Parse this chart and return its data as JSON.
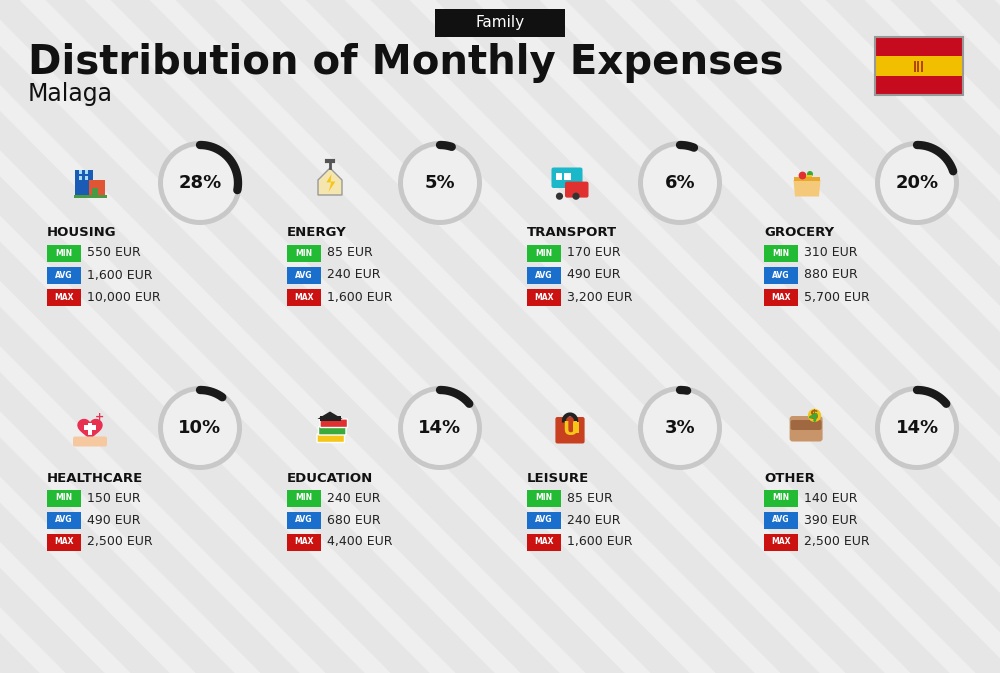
{
  "title": "Distribution of Monthly Expenses",
  "subtitle": "Malaga",
  "tag": "Family",
  "background_color": "#efefef",
  "categories": [
    {
      "name": "HOUSING",
      "pct": 28,
      "min": "550 EUR",
      "avg": "1,600 EUR",
      "max": "10,000 EUR",
      "col": 0,
      "row": 0
    },
    {
      "name": "ENERGY",
      "pct": 5,
      "min": "85 EUR",
      "avg": "240 EUR",
      "max": "1,600 EUR",
      "col": 1,
      "row": 0
    },
    {
      "name": "TRANSPORT",
      "pct": 6,
      "min": "170 EUR",
      "avg": "490 EUR",
      "max": "3,200 EUR",
      "col": 2,
      "row": 0
    },
    {
      "name": "GROCERY",
      "pct": 20,
      "min": "310 EUR",
      "avg": "880 EUR",
      "max": "5,700 EUR",
      "col": 3,
      "row": 0
    },
    {
      "name": "HEALTHCARE",
      "pct": 10,
      "min": "150 EUR",
      "avg": "490 EUR",
      "max": "2,500 EUR",
      "col": 0,
      "row": 1
    },
    {
      "name": "EDUCATION",
      "pct": 14,
      "min": "240 EUR",
      "avg": "680 EUR",
      "max": "4,400 EUR",
      "col": 1,
      "row": 1
    },
    {
      "name": "LEISURE",
      "pct": 3,
      "min": "85 EUR",
      "avg": "240 EUR",
      "max": "1,600 EUR",
      "col": 2,
      "row": 1
    },
    {
      "name": "OTHER",
      "pct": 14,
      "min": "140 EUR",
      "avg": "390 EUR",
      "max": "2,500 EUR",
      "col": 3,
      "row": 1
    }
  ],
  "min_color": "#22bb33",
  "avg_color": "#1a6fcc",
  "max_color": "#cc1111",
  "title_color": "#111111",
  "tag_bg": "#111111",
  "tag_fg": "#ffffff",
  "pct_color": "#111111",
  "category_color": "#111111",
  "stripe_color": "#e0e0e0",
  "icons": [
    "housing",
    "energy",
    "transport",
    "grocery",
    "healthcare",
    "education",
    "leisure",
    "other"
  ]
}
